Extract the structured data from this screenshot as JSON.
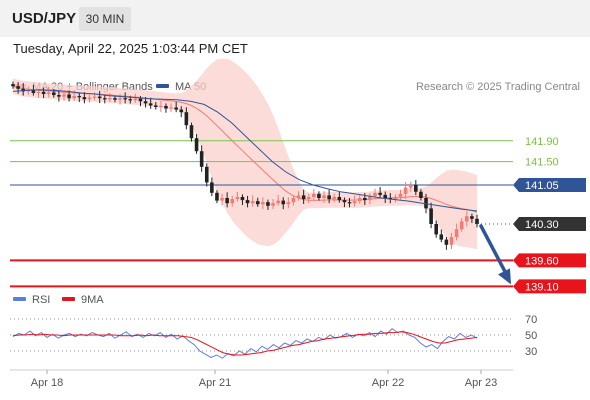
{
  "header": {
    "symbol": "USD/JPY",
    "timeframe": "30 MIN",
    "timestamp": "Tuesday, April 22, 2025 1:03:44 PM CET"
  },
  "colors": {
    "up_candle": "#f47a72",
    "down_candle": "#222222",
    "band_fill": "#fbd0cc",
    "ma20": "#f47a72",
    "ma50": "#2f5597",
    "green_level": "#7cc14b",
    "blue_level": "#2f5597",
    "red_level": "#e8141c",
    "current_tag": "#333333",
    "rsi": "#5b7fde",
    "rsi_ma": "#e8141c",
    "arrow": "#2f5597"
  },
  "chart_data": [
    {
      "type": "candlestick",
      "title": "",
      "legend": [
        {
          "name": "MA 20 + Bollinger Bands",
          "color": "#f47a72"
        },
        {
          "name": "MA 50",
          "color": "#2f5597"
        }
      ],
      "legend_placement": "top-left",
      "credit": "Research © 2025 Trading Central",
      "x_ticks": [
        "Apr 18",
        "Apr 21",
        "Apr 22",
        "Apr 23"
      ],
      "current_price": "140.30",
      "levels": [
        {
          "label": "141.90",
          "value": 141.9,
          "kind": "resistance"
        },
        {
          "label": "141.50",
          "value": 141.5,
          "kind": "resistance"
        },
        {
          "label": "141.05",
          "value": 141.05,
          "kind": "pivot"
        },
        {
          "label": "139.60",
          "value": 139.6,
          "kind": "support"
        },
        {
          "label": "139.10",
          "value": 139.1,
          "kind": "support"
        }
      ],
      "projection": {
        "from": 140.3,
        "to": 139.1
      },
      "close_series": [
        142.95,
        142.9,
        142.85,
        142.88,
        142.82,
        142.84,
        142.8,
        142.83,
        142.78,
        142.75,
        142.79,
        142.72,
        142.76,
        142.74,
        142.7,
        142.73,
        142.75,
        142.72,
        142.7,
        142.72,
        142.69,
        142.72,
        142.7,
        142.68,
        142.71,
        142.66,
        142.62,
        142.58,
        142.55,
        142.57,
        142.52,
        142.54,
        142.5,
        142.45,
        142.2,
        141.95,
        141.7,
        141.4,
        141.1,
        140.9,
        140.75,
        140.8,
        140.7,
        140.78,
        140.82,
        140.76,
        140.7,
        140.74,
        140.68,
        140.72,
        140.65,
        140.7,
        140.75,
        140.68,
        140.72,
        140.8,
        140.85,
        140.78,
        140.82,
        140.88,
        140.8,
        140.85,
        140.78,
        140.82,
        140.76,
        140.72,
        140.7,
        140.74,
        140.8,
        140.76,
        140.84,
        140.9,
        140.86,
        140.8,
        140.78,
        140.82,
        140.88,
        141.0,
        141.05,
        140.92,
        140.8,
        140.6,
        140.3,
        140.1,
        140.0,
        139.9,
        140.05,
        140.2,
        140.35,
        140.45,
        140.4,
        140.3
      ],
      "ma50_series": [
        142.85,
        142.87,
        142.88,
        142.87,
        142.85,
        142.82,
        142.8,
        142.77,
        142.75,
        142.73,
        142.71,
        142.7,
        142.69,
        142.66,
        142.6,
        142.45,
        142.25,
        142.0,
        141.75,
        141.5,
        141.3,
        141.15,
        141.05,
        140.98,
        140.92,
        140.88,
        140.84,
        140.8,
        140.77,
        140.74,
        140.7,
        140.66,
        140.62,
        140.58,
        140.55
      ]
    },
    {
      "type": "line",
      "title": "",
      "legend": [
        {
          "name": "RSI",
          "color": "#5b7fde"
        },
        {
          "name": "9MA",
          "color": "#e8141c"
        }
      ],
      "ylim": [
        15,
        80
      ],
      "y_ticks": [
        70,
        50,
        30
      ],
      "rsi_series": [
        48,
        52,
        50,
        55,
        49,
        53,
        47,
        51,
        46,
        50,
        52,
        48,
        51,
        49,
        53,
        50,
        48,
        52,
        46,
        50,
        54,
        48,
        51,
        47,
        52,
        49,
        53,
        47,
        51,
        45,
        49,
        43,
        38,
        30,
        26,
        22,
        25,
        21,
        27,
        24,
        30,
        26,
        33,
        29,
        36,
        32,
        38,
        34,
        40,
        37,
        43,
        40,
        45,
        42,
        47,
        44,
        50,
        46,
        48,
        52,
        47,
        51,
        49,
        53,
        48,
        55,
        51,
        58,
        53,
        55,
        50,
        47,
        40,
        35,
        38,
        33,
        42,
        48,
        45,
        52,
        47,
        50,
        46
      ],
      "rsi_ma_series": [
        49,
        50,
        50,
        51,
        50,
        51,
        50,
        50,
        49,
        50,
        50,
        50,
        50,
        50,
        50,
        50,
        50,
        49,
        49,
        49,
        50,
        49,
        50,
        49,
        49,
        49,
        49,
        48,
        47,
        44,
        40,
        36,
        32,
        28,
        26,
        25,
        25,
        26,
        27,
        28,
        30,
        31,
        33,
        35,
        37,
        38,
        40,
        42,
        43,
        45,
        46,
        47,
        48,
        49,
        50,
        51,
        51,
        52,
        52,
        53,
        53,
        54,
        53,
        51,
        48,
        45,
        42,
        40,
        40,
        42,
        44,
        45,
        46,
        47
      ]
    }
  ]
}
